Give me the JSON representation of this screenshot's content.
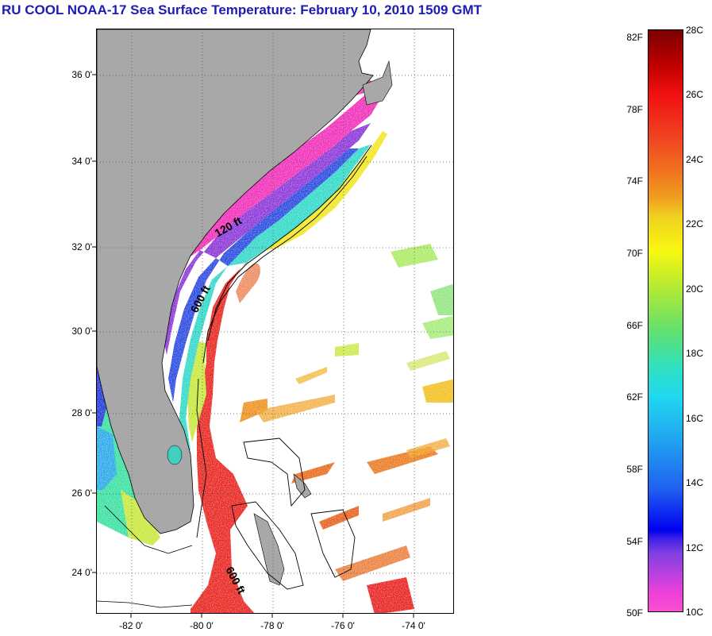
{
  "title": "RU COOL  NOAA-17  Sea Surface Temperature:  February 10, 2010 1509 GMT",
  "map": {
    "lat_labels": [
      "36 0'",
      "34 0'",
      "32 0'",
      "30 0'",
      "28 0'",
      "26 0'",
      "24 0'"
    ],
    "lon_labels": [
      "-82 0'",
      "-80 0'",
      "-78 0'",
      "-76 0'",
      "-74 0'"
    ],
    "contours": {
      "shelf": "120 ft",
      "slope": "600 ft",
      "bahamas": "600 ft"
    },
    "land_color": "#a8a8a8"
  },
  "colorbar": {
    "fahrenheit_labels": [
      "82F",
      "78F",
      "74F",
      "70F",
      "66F",
      "62F",
      "58F",
      "54F",
      "50F"
    ],
    "celsius_labels": [
      "28C",
      "26C",
      "24C",
      "22C",
      "20C",
      "18C",
      "16C",
      "14C",
      "12C",
      "10C"
    ],
    "range_c": [
      10,
      28
    ],
    "range_f": [
      50,
      82.4
    ]
  }
}
